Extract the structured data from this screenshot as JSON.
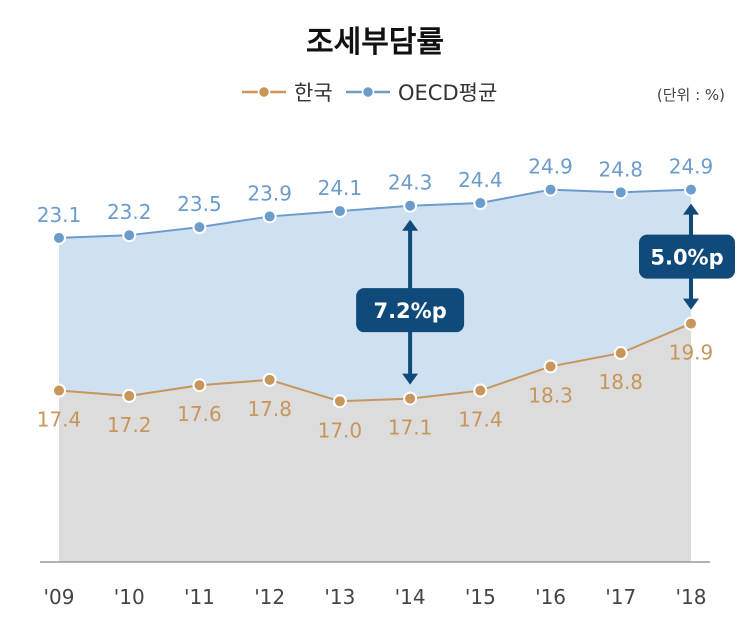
{
  "chart_data": {
    "type": "area",
    "title": "조세부담률",
    "unit_note": "(단위 : %)",
    "categories": [
      "'09",
      "'10",
      "'11",
      "'12",
      "'13",
      "'14",
      "'15",
      "'16",
      "'17",
      "'18"
    ],
    "series": [
      {
        "name": "한국",
        "color": "#c8955b",
        "fill": "#dcdcdc",
        "values": [
          17.4,
          17.2,
          17.6,
          17.8,
          17.0,
          17.1,
          17.4,
          18.3,
          18.8,
          19.9
        ]
      },
      {
        "name": "OECD평균",
        "color": "#6c9ccc",
        "fill": "#cfe0f0",
        "values": [
          23.1,
          23.2,
          23.5,
          23.9,
          24.1,
          24.3,
          24.4,
          24.9,
          24.8,
          24.9
        ]
      }
    ],
    "value_labels_korea": [
      "17.4",
      "17.2",
      "17.6",
      "17.8",
      "17.0",
      "17.1",
      "17.4",
      "18.3",
      "18.8",
      "19.9"
    ],
    "value_labels_oecd": [
      "23.1",
      "23.2",
      "23.5",
      "23.9",
      "24.1",
      "24.3",
      "24.4",
      "24.9",
      "24.8",
      "24.9"
    ],
    "ylim": [
      11,
      27.5
    ],
    "grid": false,
    "legend": "top-center",
    "annotations": [
      {
        "category_index": 5,
        "text": "7.2%p"
      },
      {
        "category_index": 9,
        "text": "5.0%p"
      }
    ],
    "annotation_color": "#0f4a7a"
  }
}
